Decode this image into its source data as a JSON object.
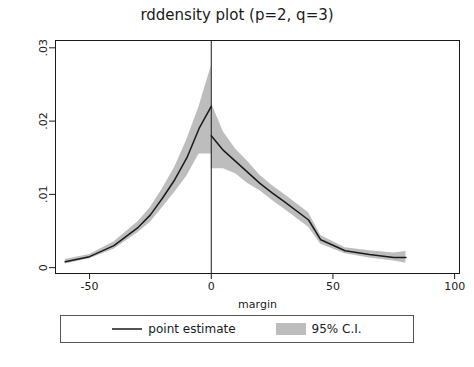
{
  "chart_data": {
    "type": "line",
    "title": "rddensity plot (p=2, q=3)",
    "x_label": "margin",
    "xlim": [
      -64,
      102
    ],
    "xticks": [
      -50,
      0,
      50,
      100
    ],
    "ylim": [
      -0.0008,
      0.031
    ],
    "yticks": [
      0,
      {
        "value": 0.01,
        "label": ".01"
      },
      {
        "value": 0.02,
        "label": ".02"
      },
      {
        "value": 0.03,
        "label": ".03"
      }
    ],
    "grid": false,
    "legend": "bottom",
    "cutoff": 0,
    "x": [
      -60,
      -50,
      -40,
      -30,
      -25,
      -20,
      -15,
      -10,
      -5,
      0,
      0,
      0,
      5,
      10,
      15,
      20,
      25,
      30,
      40,
      45,
      55,
      65,
      75,
      80
    ],
    "series": [
      {
        "name": "95% C.I.",
        "type": "area",
        "color": "#bdbdbd",
        "lower": [
          0.0005,
          0.0012,
          0.0025,
          0.0048,
          0.0062,
          0.0082,
          0.0103,
          0.0125,
          0.0155,
          0.0155,
          null,
          0.0135,
          0.0135,
          0.0128,
          0.0115,
          0.0105,
          0.0092,
          0.008,
          0.0055,
          0.0032,
          0.0019,
          0.0013,
          0.0009,
          0.0006
        ],
        "upper": [
          0.0011,
          0.0018,
          0.0035,
          0.0063,
          0.0082,
          0.0108,
          0.0137,
          0.0175,
          0.022,
          0.0275,
          null,
          0.0225,
          0.0185,
          0.0162,
          0.0145,
          0.0126,
          0.0112,
          0.01,
          0.0075,
          0.0044,
          0.0027,
          0.0023,
          0.002,
          0.0022
        ]
      },
      {
        "name": "point estimate",
        "type": "line",
        "color": "#1a1a1a",
        "values": [
          0.0008,
          0.0015,
          0.003,
          0.0055,
          0.0072,
          0.0095,
          0.012,
          0.015,
          0.019,
          0.022,
          null,
          0.018,
          0.016,
          0.0145,
          0.013,
          0.0115,
          0.0102,
          0.009,
          0.0065,
          0.0038,
          0.0023,
          0.0018,
          0.0014,
          0.0014
        ]
      }
    ]
  }
}
